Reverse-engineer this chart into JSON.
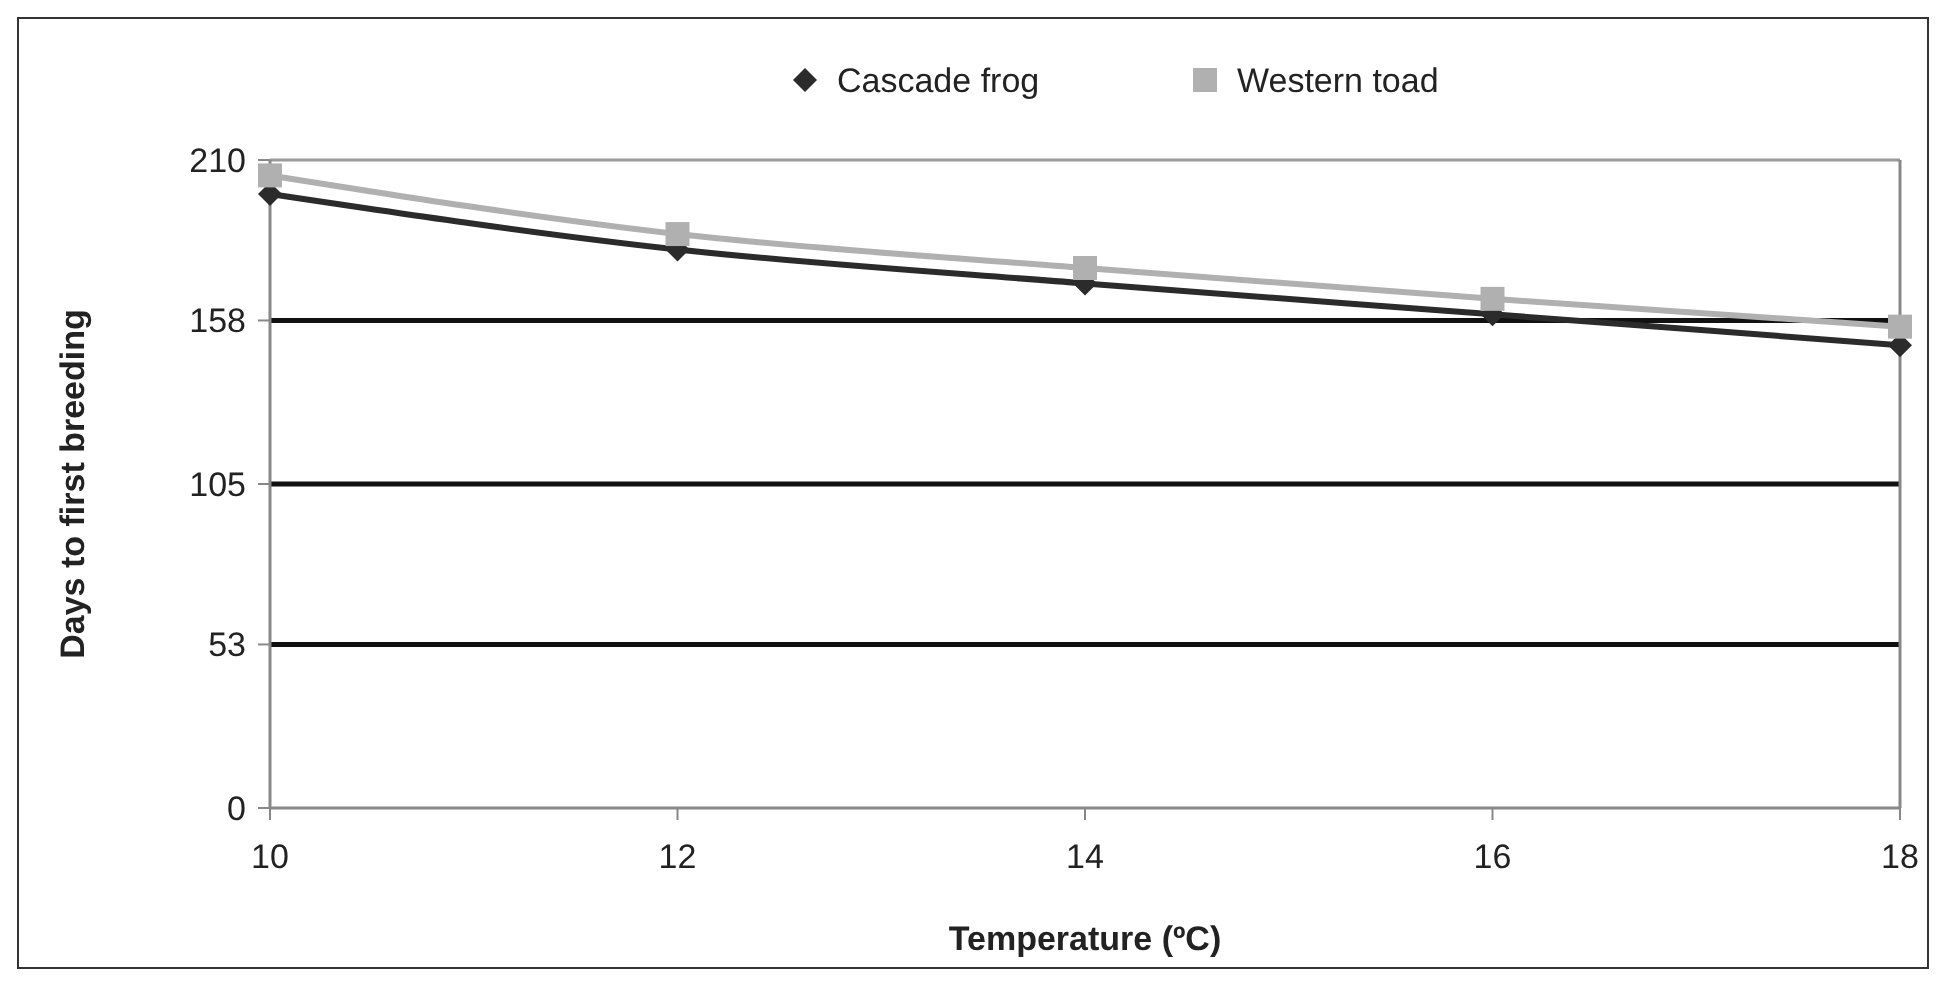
{
  "chart_data": {
    "type": "line",
    "xlabel": "Temperature (ºC)",
    "ylabel": "Days to first breeding",
    "x": [
      10,
      12,
      14,
      16,
      18
    ],
    "series": [
      {
        "name": "Cascade frog",
        "color": "#2b2b2b",
        "marker": "diamond",
        "values": [
          199,
          181,
          170,
          160,
          150
        ]
      },
      {
        "name": "Western toad",
        "color": "#b0b0b0",
        "marker": "square",
        "values": [
          205,
          186,
          175,
          165,
          156
        ]
      }
    ],
    "xlim": [
      10,
      18
    ],
    "xticks": [
      10,
      12,
      14,
      16,
      18
    ],
    "ylim": [
      0,
      210
    ],
    "yticks": [
      0,
      53,
      105,
      158,
      210
    ],
    "grid": "y",
    "legend": "top"
  }
}
